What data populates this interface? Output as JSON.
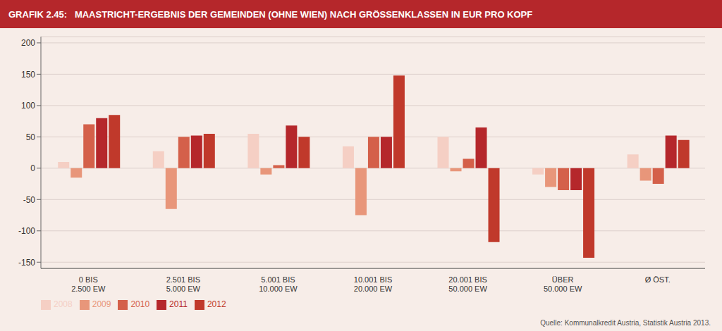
{
  "chart_data": {
    "type": "bar",
    "title": "GRAFIK 2.45:   MAASTRICHT-ERGEBNIS DER GEMEINDEN (OHNE WIEN) NACH GRÖSSENKLASSEN IN EUR PRO KOPF",
    "categories": [
      "0 BIS\n2.500 EW",
      "2.501 BIS\n5.000 EW",
      "5.001 BIS\n10.000 EW",
      "10.001 BIS\n20.000 EW",
      "20.001 BIS\n50.000 EW",
      "ÜBER\n50.000 EW",
      "Ø ÖST."
    ],
    "series": [
      {
        "name": "2008",
        "color": "#f5cfc4",
        "values": [
          10,
          27,
          55,
          35,
          50,
          -10,
          22
        ]
      },
      {
        "name": "2009",
        "color": "#e8967a",
        "values": [
          -15,
          -65,
          -10,
          -75,
          -5,
          -30,
          -20
        ]
      },
      {
        "name": "2010",
        "color": "#d4604a",
        "values": [
          70,
          50,
          5,
          50,
          15,
          -35,
          -25
        ]
      },
      {
        "name": "2011",
        "color": "#b5272b",
        "values": [
          80,
          52,
          68,
          50,
          65,
          -35,
          52
        ]
      },
      {
        "name": "2012",
        "color": "#c0392b",
        "values": [
          85,
          55,
          50,
          148,
          -118,
          -143,
          45
        ]
      }
    ],
    "ylim": [
      -160,
      210
    ],
    "yticks": [
      -150,
      -100,
      -50,
      0,
      50,
      100,
      150,
      200
    ],
    "grid": true,
    "legend": "lower left",
    "annotations": [
      "Quelle: Kommunalkredit Austria, Statistik Austria 2013."
    ]
  }
}
